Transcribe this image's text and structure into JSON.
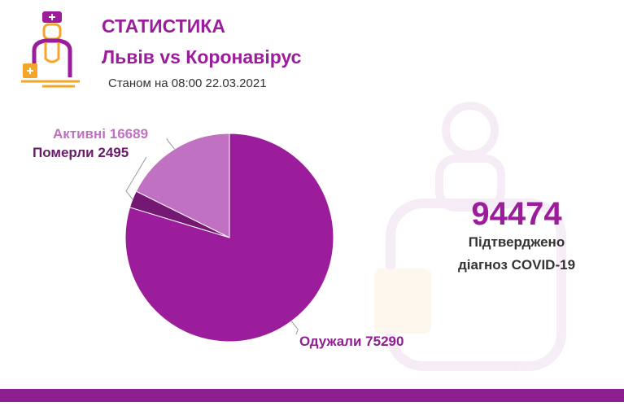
{
  "header": {
    "title": "СТАТИСТИКА",
    "subtitle": "Львів vs Коронавірус",
    "date": "Станом на 08:00 22.03.2021"
  },
  "summary": {
    "value": 94474,
    "lines": [
      "Підтверджено",
      "діагноз COVID-19"
    ]
  },
  "chart_data": {
    "type": "pie",
    "categories": [
      "Одужали",
      "Померли",
      "Активні"
    ],
    "values": [
      75290,
      2495,
      16689
    ],
    "colors": [
      "#9c1d9c",
      "#741874",
      "#c171c1"
    ]
  }
}
